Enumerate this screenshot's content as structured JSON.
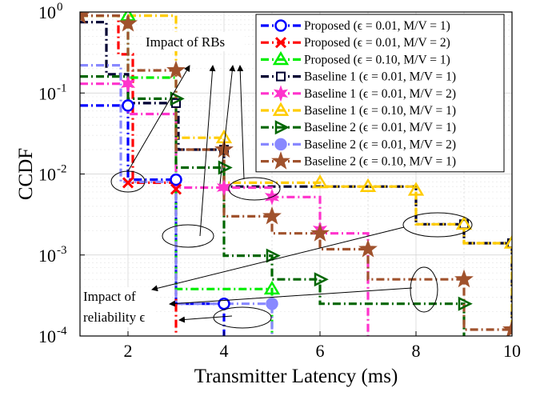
{
  "chart_data": {
    "type": "line",
    "xlabel": "Transmitter Latency (ms)",
    "ylabel": "CCDF",
    "xlim": [
      1,
      10
    ],
    "ylim": [
      0.0001,
      1
    ],
    "yscale": "log",
    "xticks": [
      "2",
      "4",
      "6",
      "8",
      "10"
    ],
    "yticks": [
      {
        "base": "10",
        "exp": "-4",
        "value": 0.0001
      },
      {
        "base": "10",
        "exp": "-3",
        "value": 0.001
      },
      {
        "base": "10",
        "exp": "-2",
        "value": 0.01
      },
      {
        "base": "10",
        "exp": "-1",
        "value": 0.1
      },
      {
        "base": "10",
        "exp": "0",
        "value": 1
      }
    ],
    "grid": true,
    "legend_position": "top-right",
    "series": [
      {
        "name": "Proposed (ϵ = 0.01, M/V = 1)",
        "color": "#0000ff",
        "dash": "10,4,2,4",
        "marker": "circle-c",
        "x": [
          1,
          2,
          2,
          3,
          3,
          4,
          4
        ],
        "y": [
          0.07,
          0.07,
          0.0085,
          0.0085,
          0.00025,
          0.00025,
          0.0001
        ]
      },
      {
        "name": "Proposed (ϵ = 0.01, M/V = 2)",
        "color": "#ff0000",
        "dash": "10,4,2,4",
        "marker": "x",
        "x": [
          1,
          1.8,
          1.8,
          2.1,
          2.1,
          3,
          3
        ],
        "y": [
          0.9,
          0.9,
          0.3,
          0.3,
          0.0078,
          0.0078,
          0.0001
        ]
      },
      {
        "name": "Proposed (ϵ = 0.10, M/V = 1)",
        "color": "#00ee00",
        "dash": "10,4,2,4",
        "marker": "triangle",
        "x": [
          1,
          2,
          2,
          3,
          3,
          5,
          5
        ],
        "y": [
          0.9,
          0.9,
          0.155,
          0.155,
          0.00038,
          0.00038,
          0.0001
        ]
      },
      {
        "name": "Baseline 1 (ϵ = 0.01, M/V = 1)",
        "color": "#000033",
        "dash": "10,4,2,4",
        "marker": "square",
        "x": [
          1,
          1.55,
          1.55,
          2,
          2,
          3.05,
          3.05,
          4,
          4,
          8,
          8,
          9,
          9,
          10,
          10
        ],
        "y": [
          0.75,
          0.75,
          0.17,
          0.17,
          0.075,
          0.075,
          0.02,
          0.02,
          0.007,
          0.007,
          0.0024,
          0.0024,
          0.0014,
          0.0014,
          0.0001
        ]
      },
      {
        "name": "Baseline 1 (ϵ = 0.01, M/V = 2)",
        "color": "#ff33cc",
        "dash": "10,4,2,4",
        "marker": "star6",
        "x": [
          1,
          2,
          2,
          3,
          3,
          5,
          5,
          6,
          6,
          7,
          7
        ],
        "y": [
          0.13,
          0.13,
          0.055,
          0.055,
          0.0068,
          0.0068,
          0.0052,
          0.0052,
          0.00185,
          0.00185,
          0.0001
        ]
      },
      {
        "name": "Baseline 1 (ϵ = 0.10, M/V = 1)",
        "color": "#ffcc00",
        "dash": "10,4,2,4",
        "marker": "triangle",
        "x": [
          1,
          3,
          3,
          4,
          4,
          6,
          6,
          8,
          8,
          9,
          9,
          10,
          10
        ],
        "y": [
          0.9,
          0.9,
          0.028,
          0.028,
          0.0078,
          0.0078,
          0.007,
          0.007,
          0.0024,
          0.0024,
          0.0014,
          0.0014,
          0.0001
        ]
      },
      {
        "name": "Baseline 2 (ϵ = 0.01, M/V = 1)",
        "color": "#006600",
        "dash": "10,4,2,4",
        "marker": "triangle-right",
        "x": [
          1,
          2,
          2,
          3,
          3,
          4,
          4,
          5,
          5,
          6,
          6,
          9,
          9
        ],
        "y": [
          0.16,
          0.16,
          0.085,
          0.085,
          0.012,
          0.012,
          0.00098,
          0.00098,
          0.0005,
          0.0005,
          0.00025,
          0.00025,
          0.0001
        ]
      },
      {
        "name": "Baseline 2 (ϵ = 0.01, M/V = 2)",
        "color": "#8888ff",
        "dash": "10,4,2,4",
        "marker": "circle",
        "x": [
          1,
          1.85,
          1.85,
          3,
          3,
          5,
          5
        ],
        "y": [
          0.22,
          0.22,
          0.008,
          0.008,
          0.00025,
          0.00025,
          0.0001
        ]
      },
      {
        "name": "Baseline 2 (ϵ = 0.10, M/V = 1)",
        "color": "#a0522d",
        "dash": "10,4,2,4",
        "marker": "star5",
        "x": [
          1,
          2,
          2,
          3,
          3,
          4,
          4,
          5,
          5,
          6,
          6,
          7,
          7,
          9,
          9,
          10
        ],
        "y": [
          0.9,
          0.9,
          0.19,
          0.19,
          0.02,
          0.02,
          0.003,
          0.003,
          0.00185,
          0.00185,
          0.00118,
          0.00118,
          0.0005,
          0.0005,
          0.00012,
          0.00012
        ]
      }
    ],
    "markers": [
      {
        "series": 0,
        "points": [
          [
            2,
            0.07
          ],
          [
            3,
            0.0085
          ],
          [
            4,
            0.00025
          ]
        ]
      },
      {
        "series": 1,
        "points": [
          [
            2,
            0.0078
          ],
          [
            3,
            0.0065
          ]
        ]
      },
      {
        "series": 2,
        "points": [
          [
            2,
            0.9
          ],
          [
            5,
            0.00038
          ]
        ]
      },
      {
        "series": 3,
        "points": [
          [
            3,
            0.075
          ],
          [
            4,
            0.02
          ],
          [
            9,
            0.0024
          ],
          [
            10,
            0.0014
          ]
        ]
      },
      {
        "series": 4,
        "points": [
          [
            2,
            0.13
          ],
          [
            4,
            0.0068
          ],
          [
            5,
            0.0052
          ],
          [
            6,
            0.00205
          ]
        ]
      },
      {
        "series": 5,
        "points": [
          [
            4,
            0.028
          ],
          [
            6,
            0.0078
          ],
          [
            7,
            0.007
          ],
          [
            8,
            0.0063
          ],
          [
            9,
            0.0024
          ],
          [
            10,
            0.0014
          ]
        ]
      },
      {
        "series": 6,
        "points": [
          [
            3,
            0.085
          ],
          [
            4,
            0.012
          ],
          [
            5,
            0.00098
          ],
          [
            6,
            0.0005
          ],
          [
            9,
            0.00025
          ]
        ]
      },
      {
        "series": 7,
        "points": [
          [
            5,
            0.00025
          ]
        ]
      },
      {
        "series": 8,
        "points": [
          [
            1,
            0.9
          ],
          [
            2,
            0.72
          ],
          [
            3,
            0.19
          ],
          [
            4,
            0.02
          ],
          [
            5,
            0.003
          ],
          [
            6,
            0.00185
          ],
          [
            7,
            0.00118
          ],
          [
            9,
            0.0005
          ],
          [
            10,
            0.00012
          ]
        ]
      }
    ],
    "annotations": {
      "rbs_label": "Impact of RBs",
      "reliability_label_line1": "Impact of",
      "reliability_label_line2": "reliability ϵ"
    }
  }
}
